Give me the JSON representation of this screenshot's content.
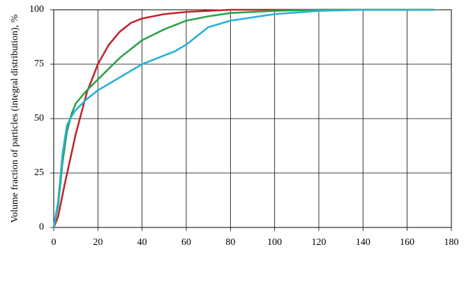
{
  "chart_data": {
    "type": "line",
    "y_label": "Volume fraction of particles (integral distribution), %",
    "xlim": [
      0,
      180
    ],
    "xticks": [
      0,
      20,
      40,
      60,
      80,
      100,
      120,
      140,
      160,
      180
    ],
    "ylim": [
      0,
      100
    ],
    "yticks": [
      0,
      25,
      50,
      75,
      100
    ],
    "grid": true,
    "series": [
      {
        "color": "#c0272d",
        "x": [
          0,
          2,
          5,
          10,
          15,
          20,
          25,
          30,
          35,
          40,
          50,
          60,
          70,
          80,
          100,
          120,
          140,
          160,
          172
        ],
        "values": [
          0,
          5,
          20,
          43,
          62,
          75,
          84,
          90,
          94,
          96,
          98,
          99,
          99.5,
          100,
          100,
          100,
          100,
          100,
          100
        ]
      },
      {
        "color": "#2ca24a",
        "x": [
          0,
          2,
          4,
          6,
          8,
          10,
          15,
          20,
          30,
          40,
          50,
          60,
          70,
          80,
          100,
          120,
          140,
          172
        ],
        "values": [
          0,
          10,
          30,
          44,
          52,
          57,
          63,
          68,
          78,
          86,
          91,
          95,
          97,
          98.5,
          99.5,
          100,
          100,
          100
        ]
      },
      {
        "color": "#2ab0d8",
        "x": [
          0,
          2,
          4,
          6,
          8,
          10,
          15,
          20,
          30,
          40,
          50,
          55,
          60,
          65,
          70,
          80,
          100,
          120,
          140,
          172
        ],
        "values": [
          0,
          12,
          34,
          47,
          51,
          54,
          59,
          63,
          69,
          75,
          79,
          81,
          84,
          88,
          92,
          95,
          98,
          99.5,
          100,
          100
        ]
      }
    ]
  }
}
